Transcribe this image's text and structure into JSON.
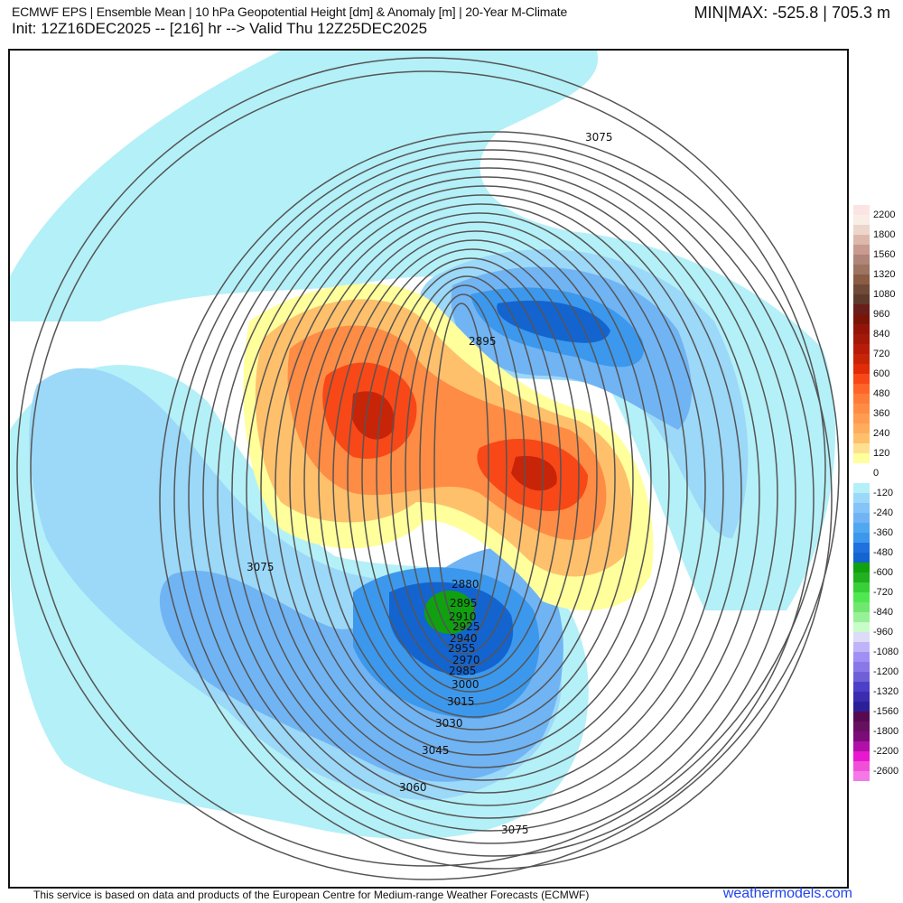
{
  "header": {
    "title": "ECMWF EPS | Ensemble Mean | 10 hPa Geopotential Height [dm] & Anomaly [m] | 20-Year M-Climate",
    "subtitle": "Init: 12Z16DEC2025 -- [216] hr --> Valid Thu 12Z25DEC2025",
    "minmax": "MIN|MAX: -525.8 | 705.3 m"
  },
  "map": {
    "contour_labels": [
      "3075",
      "2895",
      "3075",
      "2880",
      "2895",
      "2910",
      "2925",
      "2940",
      "2955",
      "2970",
      "2985",
      "3000",
      "3015",
      "3030",
      "3045",
      "3060",
      "3075"
    ],
    "colors": {
      "cyan": "#b4f0f8",
      "blue1": "#9cd8f8",
      "blue2": "#70b4f4",
      "blue3": "#3c98ec",
      "blue4": "#1464d0",
      "green": "#10a010",
      "yellow": "#ffff9c",
      "orange1": "#ffc06c",
      "orange2": "#ff8c44",
      "orange3": "#f84818",
      "red": "#c82408"
    }
  },
  "colorbar": {
    "levels": [
      {
        "label": "2200",
        "colors": [
          "#fde4e4",
          "#f8eee6"
        ]
      },
      {
        "label": "1800",
        "colors": [
          "#ecd6cc",
          "#dcb8ac"
        ]
      },
      {
        "label": "1560",
        "colors": [
          "#c89a90",
          "#b08478"
        ]
      },
      {
        "label": "1320",
        "colors": [
          "#9c7460",
          "#8a5c44"
        ]
      },
      {
        "label": "1080",
        "colors": [
          "#704a38",
          "#5e3a2c"
        ]
      },
      {
        "label": "960",
        "colors": [
          "#6a1e1a",
          "#7a1408"
        ]
      },
      {
        "label": "840",
        "colors": [
          "#941408",
          "#a41808"
        ]
      },
      {
        "label": "720",
        "colors": [
          "#b81c08",
          "#c82408"
        ]
      },
      {
        "label": "600",
        "colors": [
          "#e02c08",
          "#f84818"
        ]
      },
      {
        "label": "480",
        "colors": [
          "#ff6428",
          "#ff7c38"
        ]
      },
      {
        "label": "360",
        "colors": [
          "#ff8c44",
          "#ff9c50"
        ]
      },
      {
        "label": "240",
        "colors": [
          "#ffac5c",
          "#ffc06c"
        ]
      },
      {
        "label": "120",
        "colors": [
          "#ffe090",
          "#ffff9c"
        ]
      },
      {
        "label": "0",
        "colors": [
          "#ffffff",
          "#ffffff"
        ]
      },
      {
        "label": "-120",
        "colors": [
          "#b4f0f8",
          "#9cd8f8"
        ]
      },
      {
        "label": "-240",
        "colors": [
          "#84c4f8",
          "#70b4f4"
        ]
      },
      {
        "label": "-360",
        "colors": [
          "#50a8f0",
          "#3c98ec"
        ]
      },
      {
        "label": "-480",
        "colors": [
          "#2070e0",
          "#1464d0"
        ]
      },
      {
        "label": "-600",
        "colors": [
          "#10a010",
          "#20b020"
        ]
      },
      {
        "label": "-720",
        "colors": [
          "#38d038",
          "#50e850"
        ]
      },
      {
        "label": "-840",
        "colors": [
          "#70e870",
          "#98f098"
        ]
      },
      {
        "label": "-960",
        "colors": [
          "#c8fcc8",
          "#dcdcf8"
        ]
      },
      {
        "label": "-1080",
        "colors": [
          "#c0b4f8",
          "#a090f4"
        ]
      },
      {
        "label": "-1200",
        "colors": [
          "#8878e8",
          "#7060d8"
        ]
      },
      {
        "label": "-1320",
        "colors": [
          "#4c40c8",
          "#3c2cb0"
        ]
      },
      {
        "label": "-1560",
        "colors": [
          "#2c2098",
          "#580a50"
        ]
      },
      {
        "label": "-1800",
        "colors": [
          "#681060",
          "#7c0c78"
        ]
      },
      {
        "label": "-2200",
        "colors": [
          "#b010a8",
          "#e818d0"
        ]
      },
      {
        "label": "-2600",
        "colors": [
          "#f050d8",
          "#f478e8"
        ]
      }
    ]
  },
  "footer": {
    "attribution": "This service is based on data and products of the European Centre for Medium-range Weather Forecasts (ECMWF)",
    "brand": "weathermodels.com"
  }
}
